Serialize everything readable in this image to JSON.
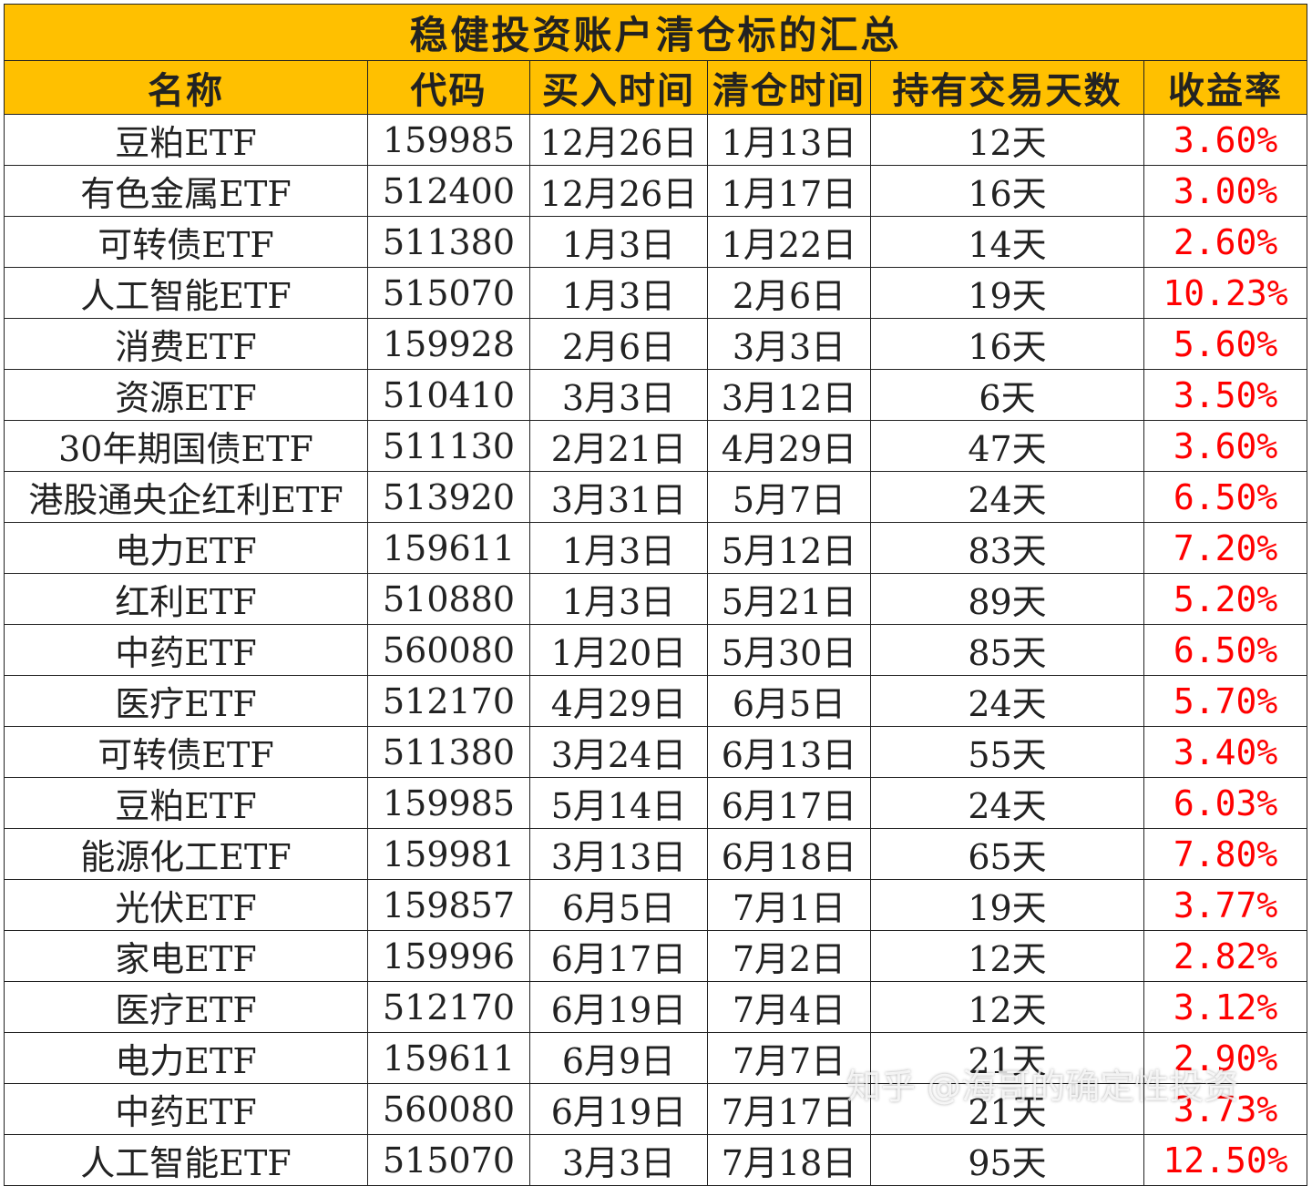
{
  "table": {
    "title": "稳健投资账户清仓标的汇总",
    "headers": [
      "名称",
      "代码",
      "买入时间",
      "清仓时间",
      "持有交易天数",
      "收益率"
    ],
    "rows": [
      [
        "豆粕ETF",
        "159985",
        "12月26日",
        "1月13日",
        "12天",
        "3.60%"
      ],
      [
        "有色金属ETF",
        "512400",
        "12月26日",
        "1月17日",
        "16天",
        "3.00%"
      ],
      [
        "可转债ETF",
        "511380",
        "1月3日",
        "1月22日",
        "14天",
        "2.60%"
      ],
      [
        "人工智能ETF",
        "515070",
        "1月3日",
        "2月6日",
        "19天",
        "10.23%"
      ],
      [
        "消费ETF",
        "159928",
        "2月6日",
        "3月3日",
        "16天",
        "5.60%"
      ],
      [
        "资源ETF",
        "510410",
        "3月3日",
        "3月12日",
        "6天",
        "3.50%"
      ],
      [
        "30年期国债ETF",
        "511130",
        "2月21日",
        "4月29日",
        "47天",
        "3.60%"
      ],
      [
        "港股通央企红利ETF",
        "513920",
        "3月31日",
        "5月7日",
        "24天",
        "6.50%"
      ],
      [
        "电力ETF",
        "159611",
        "1月3日",
        "5月12日",
        "83天",
        "7.20%"
      ],
      [
        "红利ETF",
        "510880",
        "1月3日",
        "5月21日",
        "89天",
        "5.20%"
      ],
      [
        "中药ETF",
        "560080",
        "1月20日",
        "5月30日",
        "85天",
        "6.50%"
      ],
      [
        "医疗ETF",
        "512170",
        "4月29日",
        "6月5日",
        "24天",
        "5.70%"
      ],
      [
        "可转债ETF",
        "511380",
        "3月24日",
        "6月13日",
        "55天",
        "3.40%"
      ],
      [
        "豆粕ETF",
        "159985",
        "5月14日",
        "6月17日",
        "24天",
        "6.03%"
      ],
      [
        "能源化工ETF",
        "159981",
        "3月13日",
        "6月18日",
        "65天",
        "7.80%"
      ],
      [
        "光伏ETF",
        "159857",
        "6月5日",
        "7月1日",
        "19天",
        "3.77%"
      ],
      [
        "家电ETF",
        "159996",
        "6月17日",
        "7月2日",
        "12天",
        "2.82%"
      ],
      [
        "医疗ETF",
        "512170",
        "6月19日",
        "7月4日",
        "12天",
        "3.12%"
      ],
      [
        "电力ETF",
        "159611",
        "6月9日",
        "7月7日",
        "21天",
        "2.90%"
      ],
      [
        "中药ETF",
        "560080",
        "6月19日",
        "7月17日",
        "21天",
        "3.73%"
      ],
      [
        "人工智能ETF",
        "515070",
        "3月3日",
        "7月18日",
        "95天",
        "12.50%"
      ]
    ]
  },
  "watermark": "知乎 @海哥的确定性投资",
  "colors": {
    "header_bg": "#ffc000",
    "return_text": "#ff0000",
    "grid": "#222222"
  }
}
